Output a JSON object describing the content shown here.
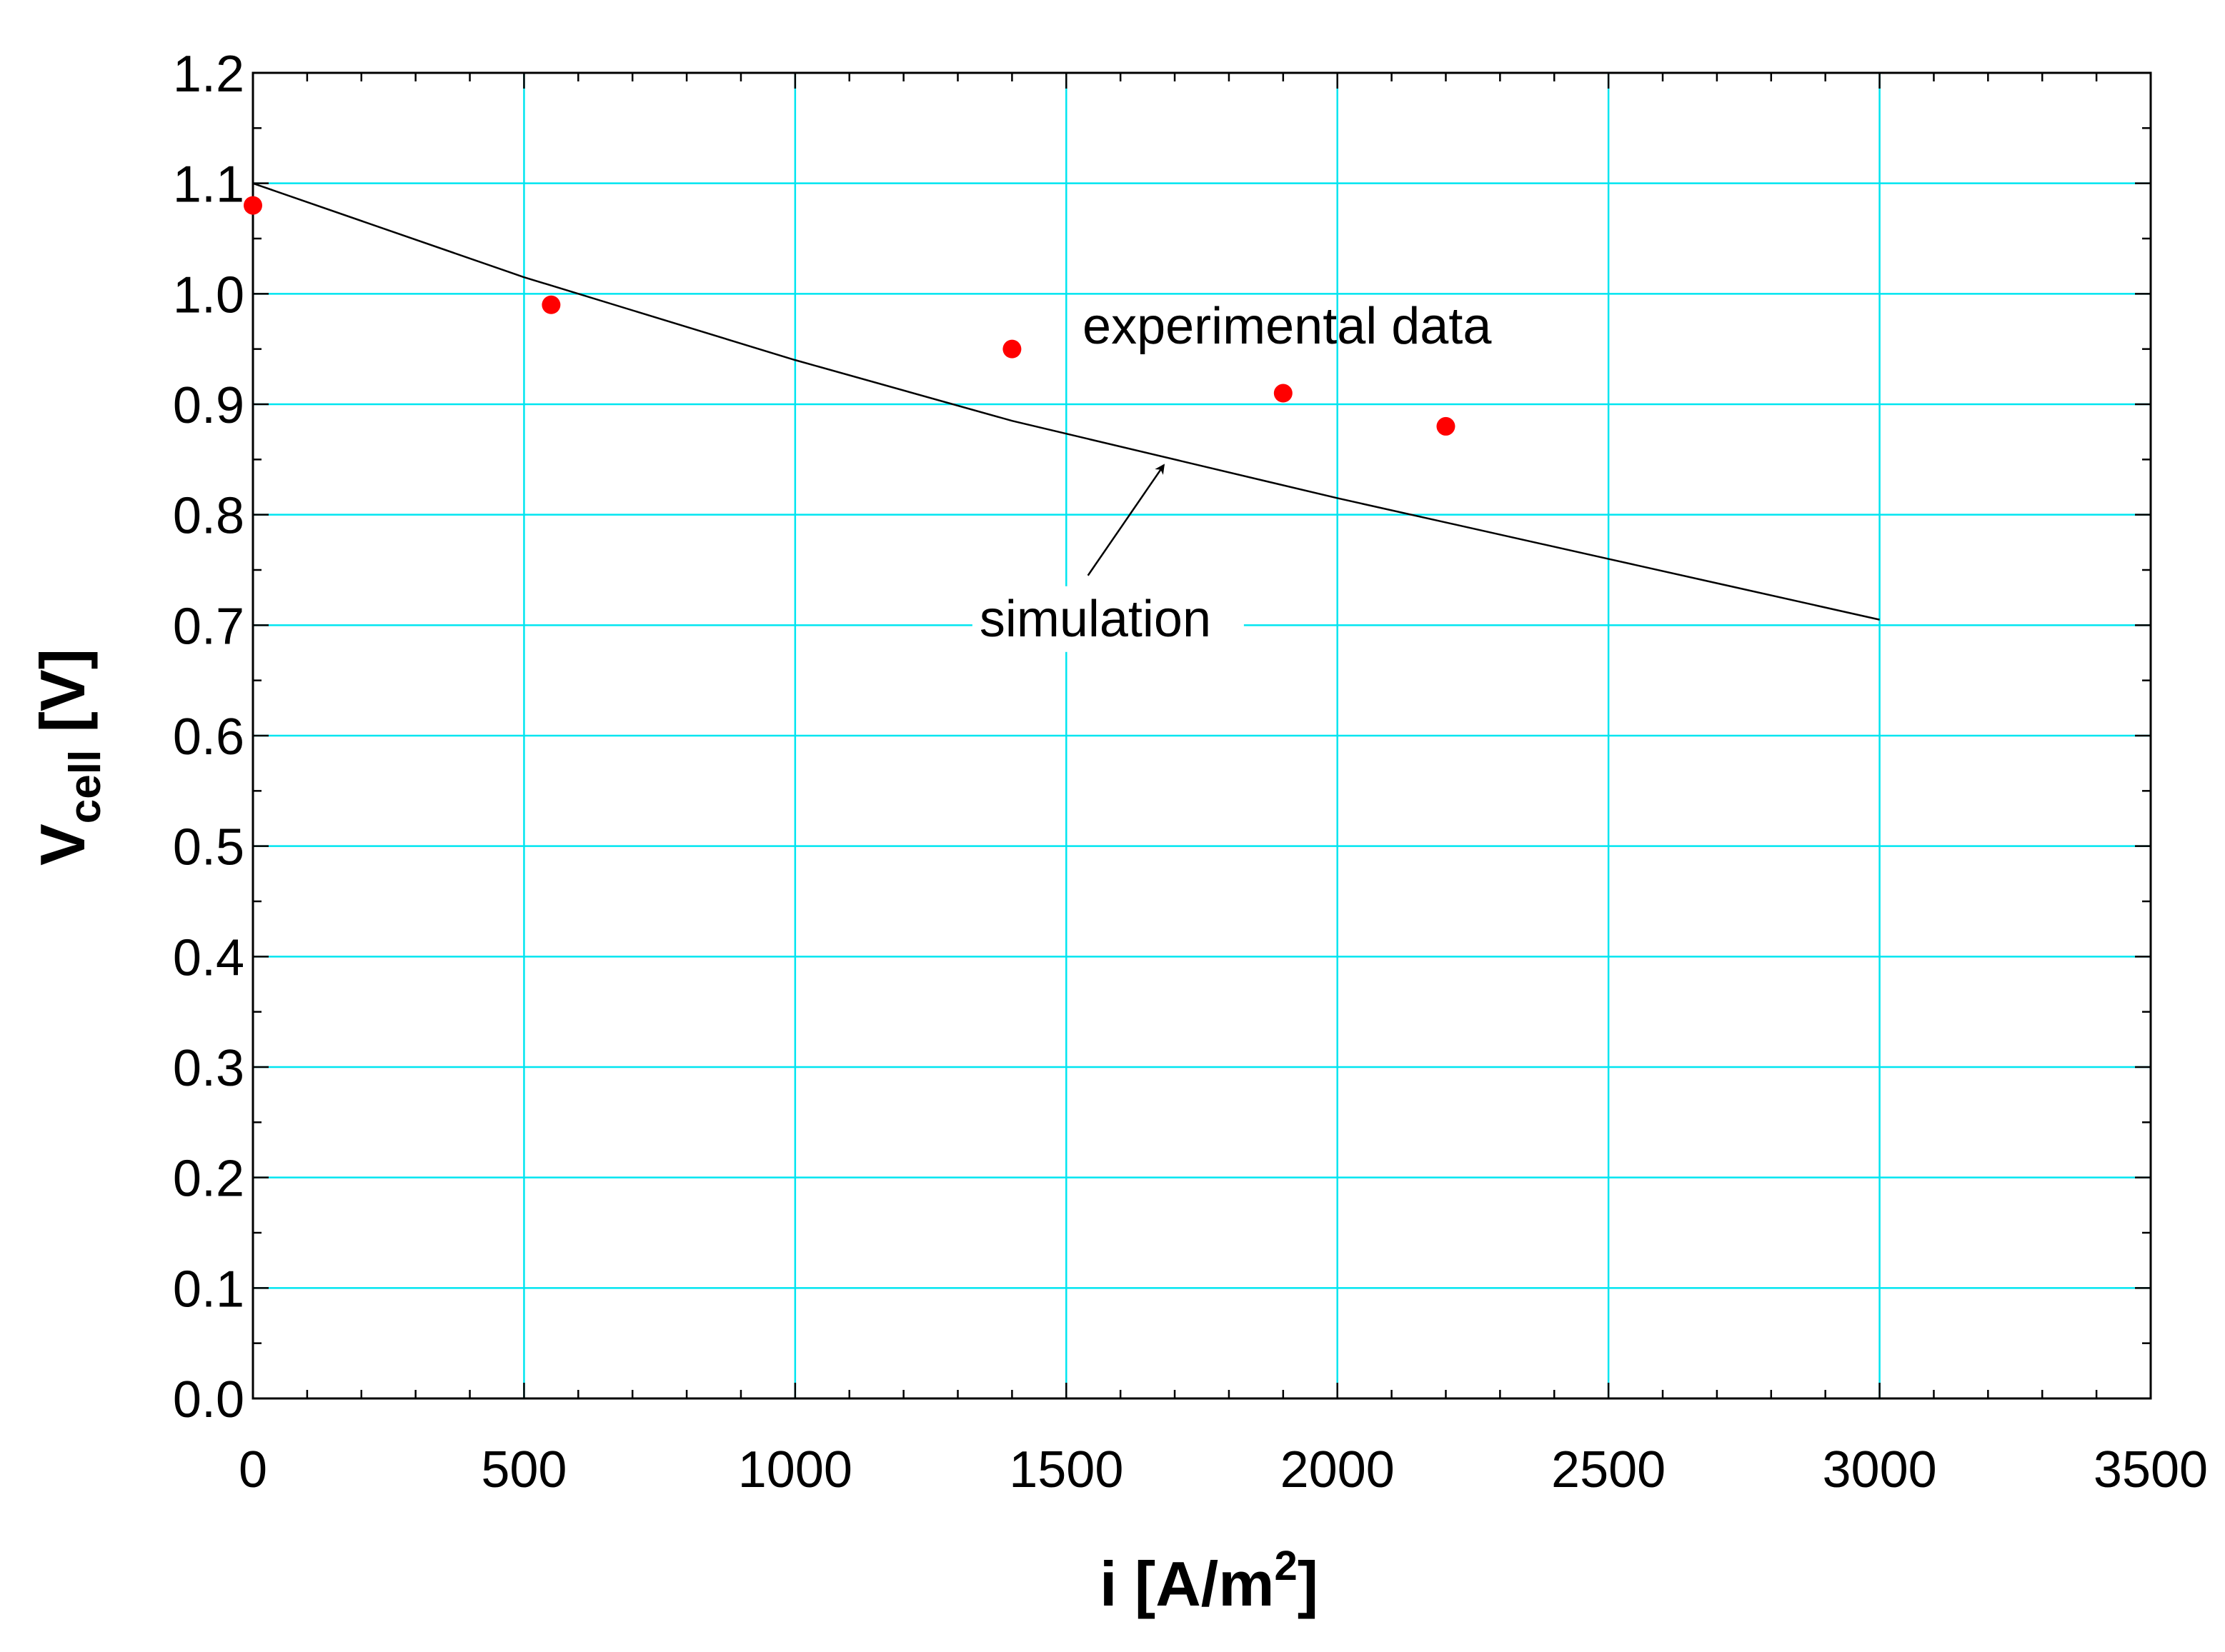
{
  "chart_data": {
    "type": "scatter",
    "title": "",
    "xlabel": {
      "main": "i  [A/m",
      "sup": "2",
      "end": "]"
    },
    "ylabel": {
      "main": "V",
      "sub": "cell",
      "end": " [V]"
    },
    "xlim": [
      0,
      3500
    ],
    "ylim": [
      0.0,
      1.2
    ],
    "x_ticks": [
      0,
      500,
      1000,
      1500,
      2000,
      2500,
      3000,
      3500
    ],
    "y_ticks": [
      0.0,
      0.1,
      0.2,
      0.3,
      0.4,
      0.5,
      0.6,
      0.7,
      0.8,
      0.9,
      1.0,
      1.1,
      1.2
    ],
    "x_tick_labels": [
      "0",
      "500",
      "1000",
      "1500",
      "2000",
      "2500",
      "3000",
      "3500"
    ],
    "y_tick_labels": [
      "0.0",
      "0.1",
      "0.2",
      "0.3",
      "0.4",
      "0.5",
      "0.6",
      "0.7",
      "0.8",
      "0.9",
      "1.0",
      "1.1",
      "1.2"
    ],
    "grid": true,
    "grid_color": "#00e5f0",
    "series": [
      {
        "name": "experimental data",
        "kind": "scatter",
        "color": "#ff0000",
        "x": [
          0,
          550,
          1400,
          1900,
          2200
        ],
        "y": [
          1.08,
          0.99,
          0.95,
          0.91,
          0.88
        ]
      },
      {
        "name": "simulation",
        "kind": "line",
        "color": "#000000",
        "x": [
          0,
          500,
          1000,
          1400,
          2000,
          2500,
          3000
        ],
        "y": [
          1.1,
          1.015,
          0.94,
          0.885,
          0.815,
          0.76,
          0.705
        ]
      }
    ],
    "annotations": [
      {
        "text": "experimental data",
        "x": 1530,
        "y": 0.955
      },
      {
        "text": "simulation",
        "x": 1340,
        "y": 0.69,
        "arrow_to": [
          1680,
          0.845
        ]
      }
    ]
  }
}
